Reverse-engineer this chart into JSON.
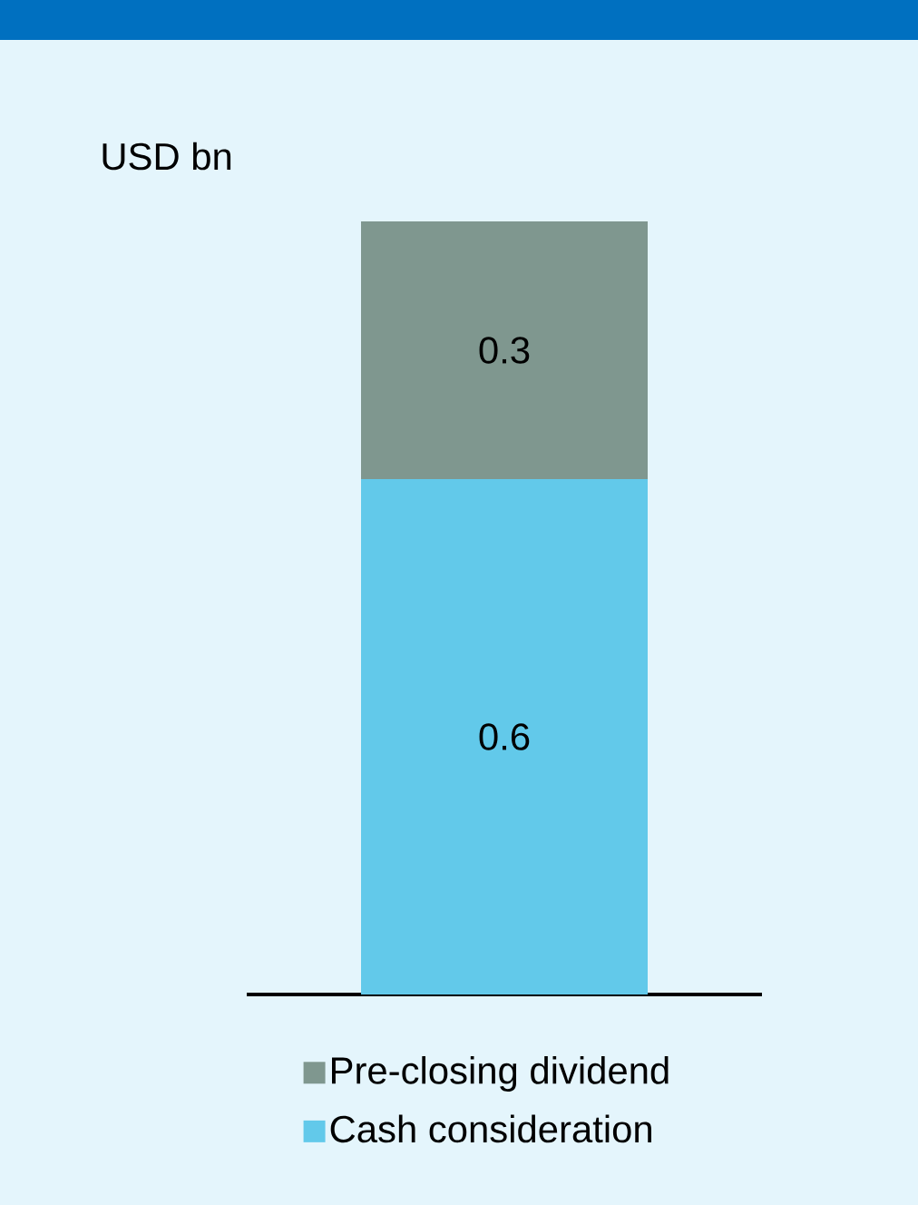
{
  "chart_data": {
    "type": "bar",
    "stacked": true,
    "ylabel": "USD bn",
    "categories": [
      null
    ],
    "series": [
      {
        "name": "Cash consideration",
        "color": "#62c9ea",
        "values": [
          0.6
        ]
      },
      {
        "name": "Pre-closing dividend",
        "color": "#7f978f",
        "values": [
          0.3
        ]
      }
    ],
    "data_labels": true,
    "legend": "bottom"
  }
}
